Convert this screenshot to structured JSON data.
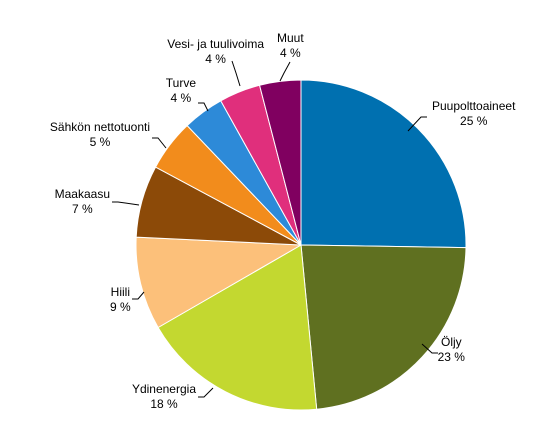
{
  "chart_data": {
    "type": "pie",
    "start": "12 o'clock",
    "direction": "clockwise",
    "slices": [
      {
        "label": "Puupolttoaineet",
        "value": 25,
        "value_label": "25 %",
        "color": "#0070b0"
      },
      {
        "label": "Öljy",
        "value": 23,
        "value_label": "23 %",
        "color": "#5f7020"
      },
      {
        "label": "Ydinenergia",
        "value": 18,
        "value_label": "18 %",
        "color": "#c3d830"
      },
      {
        "label": "Hiili",
        "value": 9,
        "value_label": "9 %",
        "color": "#fcc07a"
      },
      {
        "label": "Maakaasu",
        "value": 7,
        "value_label": "7 %",
        "color": "#8c4a08"
      },
      {
        "label": "Sähkön nettotuonti",
        "value": 5,
        "value_label": "5 %",
        "color": "#f28c1c"
      },
      {
        "label": "Turve",
        "value": 4,
        "value_label": "4 %",
        "color": "#2d8ad8"
      },
      {
        "label": "Vesi- ja tuulivoima",
        "value": 4,
        "value_label": "4 %",
        "color": "#e02f7c"
      },
      {
        "label": "Muut",
        "value": 4,
        "value_label": "4 %",
        "color": "#800060"
      }
    ]
  }
}
